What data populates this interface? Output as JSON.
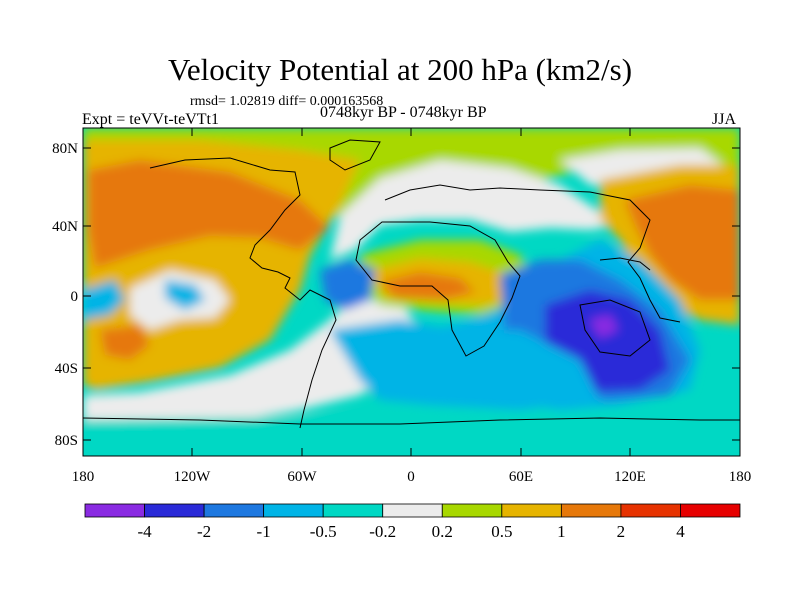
{
  "header": {
    "title": "Velocity Potential at 200 hPa (km2/s)",
    "stats": "rmsd= 1.02819 diff= 0.000163568",
    "experiment": "Expt = teVVt-teVTt1",
    "period": "0748kyr BP - 0748kyr BP",
    "season": "JJA"
  },
  "axes": {
    "lat_labels": [
      "80N",
      "40N",
      "0",
      "40S",
      "80S"
    ],
    "lon_labels": [
      "180",
      "120W",
      "60W",
      "0",
      "60E",
      "120E",
      "180"
    ]
  },
  "colorbar": {
    "labels": [
      "-4",
      "-2",
      "-1",
      "-0.5",
      "-0.2",
      "0.2",
      "0.5",
      "1",
      "2",
      "4"
    ],
    "colors": [
      "#8a2be2",
      "#2a2ad8",
      "#1e78e0",
      "#00b4e6",
      "#00d8c4",
      "#ececec",
      "#a8d800",
      "#e6b400",
      "#e6780a",
      "#e63200",
      "#e60000"
    ]
  }
}
